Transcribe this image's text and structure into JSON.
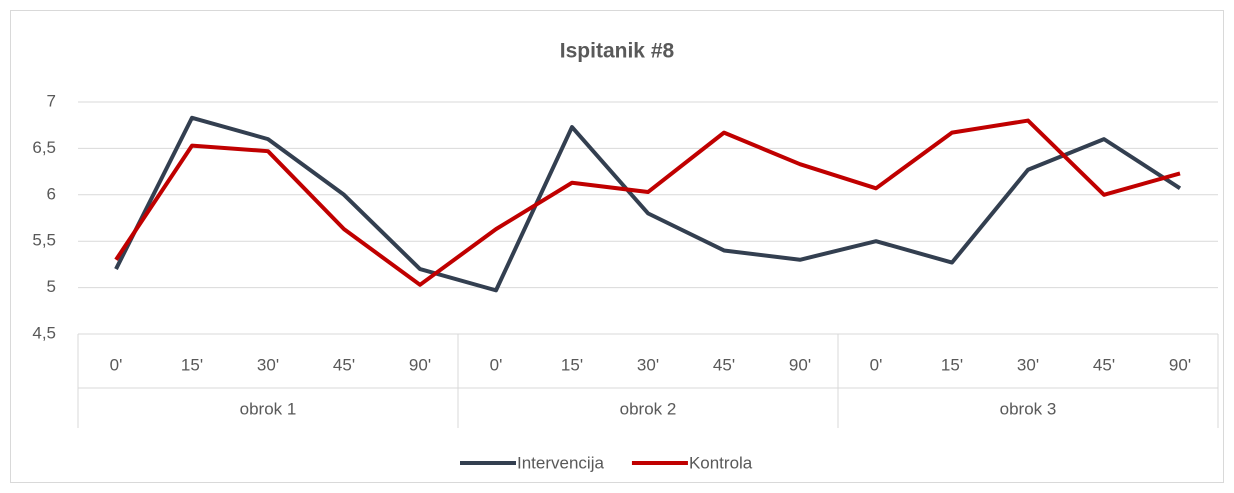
{
  "chart_data": {
    "type": "line",
    "title": "Ispitanik #8",
    "categories": [
      "0'",
      "15'",
      "30'",
      "45'",
      "90'",
      "0'",
      "15'",
      "30'",
      "45'",
      "90'",
      "0'",
      "15'",
      "30'",
      "45'",
      "90'"
    ],
    "groups": [
      "obrok 1",
      "obrok 2",
      "obrok 3"
    ],
    "series": [
      {
        "name": "Intervencija",
        "color": "#333f50",
        "values": [
          5.2,
          6.83,
          6.6,
          6.0,
          5.2,
          4.97,
          6.73,
          5.8,
          5.4,
          5.3,
          5.5,
          5.27,
          6.27,
          6.6,
          6.07
        ]
      },
      {
        "name": "Kontrola",
        "color": "#c00000",
        "values": [
          5.3,
          6.53,
          6.47,
          5.63,
          5.03,
          5.63,
          6.13,
          6.03,
          6.67,
          6.33,
          6.07,
          6.67,
          6.8,
          6.0,
          6.23
        ]
      }
    ],
    "ylim": [
      4.5,
      7
    ],
    "yticks": [
      {
        "value": 4.5,
        "label": "4,5"
      },
      5,
      {
        "value": 5.5,
        "label": "5,5"
      },
      6,
      {
        "value": 6.5,
        "label": "6,5"
      },
      7
    ],
    "grid": true,
    "legend": "bottom"
  }
}
